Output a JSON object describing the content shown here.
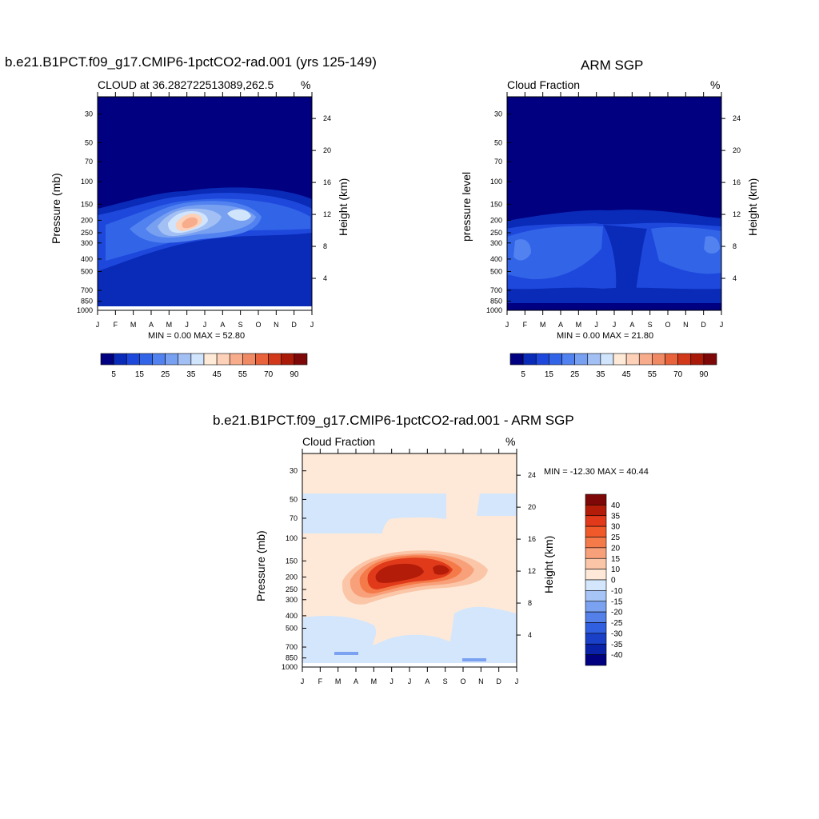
{
  "colors": {
    "model_bar": [
      "#000080",
      "#0a2ab8",
      "#1e48dc",
      "#3264e8",
      "#5282f0",
      "#78a0f0",
      "#a3c0f5",
      "#d0e4fc",
      "#ffead8",
      "#fdd0b8",
      "#f7ac8c",
      "#f08a64",
      "#e8623c",
      "#d2381a",
      "#aa1a08",
      "#7e0808"
    ],
    "diff_bar": [
      "#7e0808",
      "#b31c08",
      "#e03a1a",
      "#f05a2a",
      "#f57a4a",
      "#f8a07a",
      "#fbc6a8",
      "#fee9d8",
      "#d4e6fb",
      "#a6c4f5",
      "#7aa2f0",
      "#5480ea",
      "#3060e0",
      "#1a40c8",
      "#0a22a8",
      "#000080"
    ]
  },
  "chart_data": [
    {
      "type": "heatmap",
      "title": "b.e21.B1PCT.f09_g17.CMIP6-1pctCO2-rad.001 (yrs 125-149)",
      "subtitle": "CLOUD at 36.282722513089,262.5",
      "units": "%",
      "ylabel": "Pressure (mb)",
      "ylabel_right": "Height (km)",
      "x_ticks": [
        "J",
        "F",
        "M",
        "A",
        "M",
        "J",
        "J",
        "A",
        "S",
        "O",
        "N",
        "D",
        "J"
      ],
      "y_ticks": [
        "30",
        "50",
        "70",
        "100",
        "150",
        "200",
        "250",
        "300",
        "400",
        "500",
        "700",
        "850",
        "1000"
      ],
      "y_ticks_right": [
        "24",
        "20",
        "16",
        "12",
        "8",
        "4"
      ],
      "minmax": "MIN =   0.00 MAX =  52.80",
      "min": 0.0,
      "max": 52.8,
      "colorbar_labels": [
        "5",
        "15",
        "25",
        "35",
        "45",
        "55",
        "70",
        "90"
      ]
    },
    {
      "type": "heatmap",
      "title": "ARM SGP",
      "subtitle": "Cloud Fraction",
      "units": "%",
      "ylabel": "pressure level",
      "ylabel_right": "Height (km)",
      "x_ticks": [
        "J",
        "F",
        "M",
        "A",
        "M",
        "J",
        "J",
        "A",
        "S",
        "O",
        "N",
        "D",
        "J"
      ],
      "y_ticks": [
        "30",
        "50",
        "70",
        "100",
        "150",
        "200",
        "250",
        "300",
        "400",
        "500",
        "700",
        "850",
        "1000"
      ],
      "y_ticks_right": [
        "24",
        "20",
        "16",
        "12",
        "8",
        "4"
      ],
      "minmax": "MIN =   0.00 MAX =  21.80",
      "min": 0.0,
      "max": 21.8,
      "colorbar_labels": [
        "5",
        "15",
        "25",
        "35",
        "45",
        "55",
        "70",
        "90"
      ]
    },
    {
      "type": "heatmap",
      "title": "b.e21.B1PCT.f09_g17.CMIP6-1pctCO2-rad.001 - ARM SGP",
      "subtitle": "Cloud Fraction",
      "units": "%",
      "ylabel": "Pressure (mb)",
      "ylabel_right": "Height (km)",
      "x_ticks": [
        "J",
        "F",
        "M",
        "A",
        "M",
        "J",
        "J",
        "A",
        "S",
        "O",
        "N",
        "D",
        "J"
      ],
      "y_ticks": [
        "30",
        "50",
        "70",
        "100",
        "150",
        "200",
        "250",
        "300",
        "400",
        "500",
        "700",
        "850",
        "1000"
      ],
      "y_ticks_right": [
        "24",
        "20",
        "16",
        "12",
        "8",
        "4"
      ],
      "minmax": "MIN = -12.30 MAX =  40.44",
      "min": -12.3,
      "max": 40.44,
      "colorbar_labels": [
        "40",
        "35",
        "30",
        "25",
        "20",
        "15",
        "10",
        "0",
        "-10",
        "-15",
        "-20",
        "-25",
        "-30",
        "-35",
        "-40"
      ]
    }
  ]
}
